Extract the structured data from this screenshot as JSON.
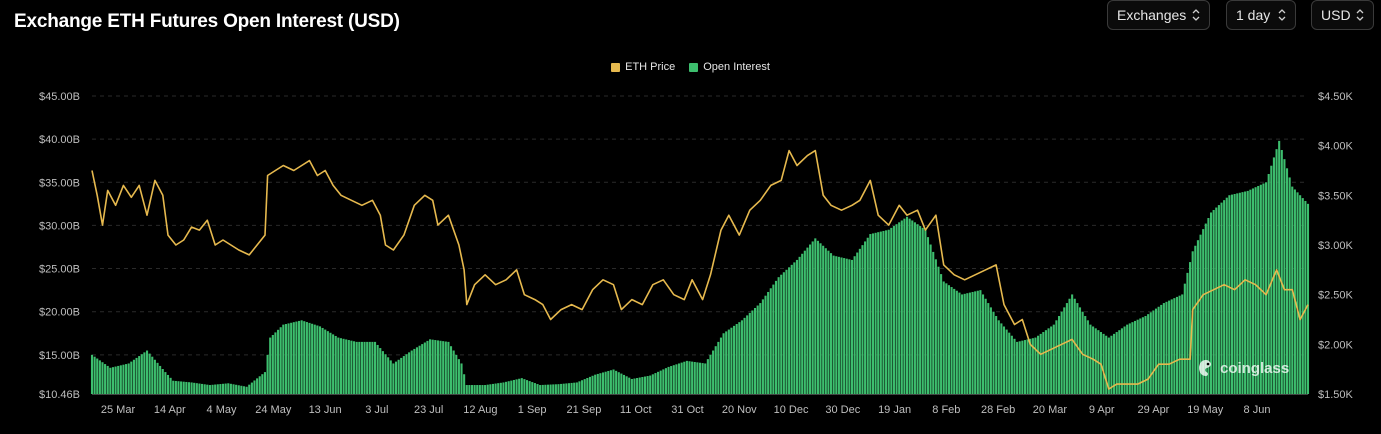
{
  "header": {
    "title": "Exchange ETH Futures Open Interest (USD)",
    "controls": [
      {
        "label": "Exchanges",
        "icon": "chevron-updown-icon"
      },
      {
        "label": "1 day",
        "icon": "chevron-updown-icon"
      },
      {
        "label": "USD",
        "icon": "chevron-updown-icon"
      }
    ]
  },
  "watermark": {
    "text": "coinglass",
    "icon": "coinglass-logo-icon"
  },
  "colors": {
    "price": "#E6B94E",
    "open_interest": "#3DBE6E",
    "grid": "#2a2a2a",
    "tick_text": "#bfbfbf",
    "background": "#000000"
  },
  "chart_data": {
    "type": "bar",
    "title": "Exchange ETH Futures Open Interest (USD)",
    "legend_position": "top-center",
    "grid": true,
    "x_ticks": [
      "25 Mar",
      "14 Apr",
      "4 May",
      "24 May",
      "13 Jun",
      "3 Jul",
      "23 Jul",
      "12 Aug",
      "1 Sep",
      "21 Sep",
      "11 Oct",
      "31 Oct",
      "20 Nov",
      "10 Dec",
      "30 Dec",
      "19 Jan",
      "8 Feb",
      "28 Feb",
      "20 Mar",
      "9 Apr",
      "29 Apr",
      "19 May",
      "8 Jun"
    ],
    "y_left": {
      "ticks": [
        "$10.46B",
        "$15.00B",
        "$20.00B",
        "$25.00B",
        "$30.00B",
        "$35.00B",
        "$40.00B",
        "$45.00B"
      ],
      "tick_values": [
        10.46,
        15,
        20,
        25,
        30,
        35,
        40,
        45
      ],
      "ylim": [
        10.46,
        45
      ]
    },
    "y_right": {
      "ticks": [
        "$1.50K",
        "$2.00K",
        "$2.50K",
        "$3.00K",
        "$3.50K",
        "$4.00K",
        "$4.50K"
      ],
      "tick_values": [
        1500,
        2000,
        2500,
        3000,
        3500,
        4000,
        4500
      ],
      "ylim": [
        1500,
        4500
      ]
    },
    "x_range": [
      "2024-03-15",
      "2025-06-22"
    ],
    "series": [
      {
        "name": "ETH Price",
        "type": "line",
        "axis": "right",
        "unit": "USD",
        "points": [
          [
            "2024-03-15",
            3750
          ],
          [
            "2024-03-17",
            3500
          ],
          [
            "2024-03-19",
            3200
          ],
          [
            "2024-03-21",
            3550
          ],
          [
            "2024-03-24",
            3400
          ],
          [
            "2024-03-27",
            3600
          ],
          [
            "2024-03-30",
            3480
          ],
          [
            "2024-04-02",
            3600
          ],
          [
            "2024-04-05",
            3300
          ],
          [
            "2024-04-08",
            3650
          ],
          [
            "2024-04-11",
            3500
          ],
          [
            "2024-04-13",
            3100
          ],
          [
            "2024-04-16",
            3000
          ],
          [
            "2024-04-19",
            3050
          ],
          [
            "2024-04-22",
            3180
          ],
          [
            "2024-04-25",
            3150
          ],
          [
            "2024-04-28",
            3250
          ],
          [
            "2024-05-01",
            3000
          ],
          [
            "2024-05-04",
            3050
          ],
          [
            "2024-05-07",
            3000
          ],
          [
            "2024-05-10",
            2950
          ],
          [
            "2024-05-14",
            2900
          ],
          [
            "2024-05-17",
            3000
          ],
          [
            "2024-05-20",
            3100
          ],
          [
            "2024-05-21",
            3700
          ],
          [
            "2024-05-24",
            3750
          ],
          [
            "2024-05-27",
            3800
          ],
          [
            "2024-05-31",
            3750
          ],
          [
            "2024-06-03",
            3800
          ],
          [
            "2024-06-06",
            3850
          ],
          [
            "2024-06-09",
            3700
          ],
          [
            "2024-06-12",
            3750
          ],
          [
            "2024-06-15",
            3600
          ],
          [
            "2024-06-18",
            3500
          ],
          [
            "2024-06-22",
            3450
          ],
          [
            "2024-06-26",
            3400
          ],
          [
            "2024-06-30",
            3450
          ],
          [
            "2024-07-03",
            3300
          ],
          [
            "2024-07-05",
            3000
          ],
          [
            "2024-07-08",
            2950
          ],
          [
            "2024-07-12",
            3100
          ],
          [
            "2024-07-16",
            3400
          ],
          [
            "2024-07-20",
            3500
          ],
          [
            "2024-07-23",
            3450
          ],
          [
            "2024-07-25",
            3200
          ],
          [
            "2024-07-29",
            3300
          ],
          [
            "2024-08-02",
            3000
          ],
          [
            "2024-08-04",
            2750
          ],
          [
            "2024-08-05",
            2400
          ],
          [
            "2024-08-08",
            2600
          ],
          [
            "2024-08-12",
            2700
          ],
          [
            "2024-08-16",
            2600
          ],
          [
            "2024-08-20",
            2650
          ],
          [
            "2024-08-24",
            2750
          ],
          [
            "2024-08-27",
            2500
          ],
          [
            "2024-08-31",
            2450
          ],
          [
            "2024-09-03",
            2400
          ],
          [
            "2024-09-06",
            2250
          ],
          [
            "2024-09-10",
            2350
          ],
          [
            "2024-09-14",
            2400
          ],
          [
            "2024-09-18",
            2350
          ],
          [
            "2024-09-22",
            2550
          ],
          [
            "2024-09-26",
            2650
          ],
          [
            "2024-09-30",
            2600
          ],
          [
            "2024-10-03",
            2350
          ],
          [
            "2024-10-07",
            2450
          ],
          [
            "2024-10-11",
            2400
          ],
          [
            "2024-10-15",
            2600
          ],
          [
            "2024-10-19",
            2650
          ],
          [
            "2024-10-23",
            2500
          ],
          [
            "2024-10-27",
            2450
          ],
          [
            "2024-10-30",
            2650
          ],
          [
            "2024-11-03",
            2450
          ],
          [
            "2024-11-06",
            2700
          ],
          [
            "2024-11-10",
            3150
          ],
          [
            "2024-11-13",
            3300
          ],
          [
            "2024-11-17",
            3100
          ],
          [
            "2024-11-21",
            3350
          ],
          [
            "2024-11-25",
            3450
          ],
          [
            "2024-11-29",
            3600
          ],
          [
            "2024-12-03",
            3650
          ],
          [
            "2024-12-06",
            3950
          ],
          [
            "2024-12-09",
            3800
          ],
          [
            "2024-12-13",
            3900
          ],
          [
            "2024-12-16",
            3950
          ],
          [
            "2024-12-19",
            3500
          ],
          [
            "2024-12-22",
            3400
          ],
          [
            "2024-12-26",
            3350
          ],
          [
            "2024-12-30",
            3400
          ],
          [
            "2025-01-02",
            3450
          ],
          [
            "2025-01-06",
            3650
          ],
          [
            "2025-01-09",
            3300
          ],
          [
            "2025-01-13",
            3200
          ],
          [
            "2025-01-17",
            3400
          ],
          [
            "2025-01-20",
            3300
          ],
          [
            "2025-01-24",
            3350
          ],
          [
            "2025-01-27",
            3150
          ],
          [
            "2025-01-31",
            3300
          ],
          [
            "2025-02-03",
            2800
          ],
          [
            "2025-02-07",
            2700
          ],
          [
            "2025-02-11",
            2650
          ],
          [
            "2025-02-15",
            2700
          ],
          [
            "2025-02-19",
            2750
          ],
          [
            "2025-02-23",
            2800
          ],
          [
            "2025-02-26",
            2400
          ],
          [
            "2025-03-02",
            2200
          ],
          [
            "2025-03-05",
            2250
          ],
          [
            "2025-03-08",
            2000
          ],
          [
            "2025-03-12",
            1900
          ],
          [
            "2025-03-16",
            1950
          ],
          [
            "2025-03-20",
            2000
          ],
          [
            "2025-03-24",
            2050
          ],
          [
            "2025-03-28",
            1900
          ],
          [
            "2025-04-01",
            1850
          ],
          [
            "2025-04-04",
            1800
          ],
          [
            "2025-04-07",
            1550
          ],
          [
            "2025-04-10",
            1600
          ],
          [
            "2025-04-14",
            1600
          ],
          [
            "2025-04-18",
            1600
          ],
          [
            "2025-04-22",
            1650
          ],
          [
            "2025-04-26",
            1800
          ],
          [
            "2025-04-30",
            1800
          ],
          [
            "2025-05-04",
            1850
          ],
          [
            "2025-05-08",
            1850
          ],
          [
            "2025-05-09",
            2350
          ],
          [
            "2025-05-13",
            2500
          ],
          [
            "2025-05-17",
            2550
          ],
          [
            "2025-05-21",
            2600
          ],
          [
            "2025-05-25",
            2550
          ],
          [
            "2025-05-29",
            2650
          ],
          [
            "2025-06-02",
            2600
          ],
          [
            "2025-06-06",
            2500
          ],
          [
            "2025-06-10",
            2750
          ],
          [
            "2025-06-13",
            2550
          ],
          [
            "2025-06-16",
            2550
          ],
          [
            "2025-06-19",
            2250
          ],
          [
            "2025-06-22",
            2400
          ]
        ]
      },
      {
        "name": "Open Interest",
        "type": "bar",
        "axis": "left",
        "unit": "USD billions",
        "points": [
          [
            "2024-03-15",
            15.0
          ],
          [
            "2024-03-22",
            13.5
          ],
          [
            "2024-03-29",
            14.0
          ],
          [
            "2024-04-05",
            15.5
          ],
          [
            "2024-04-12",
            13.0
          ],
          [
            "2024-04-15",
            12.0
          ],
          [
            "2024-04-22",
            11.8
          ],
          [
            "2024-04-29",
            11.5
          ],
          [
            "2024-05-06",
            11.7
          ],
          [
            "2024-05-13",
            11.3
          ],
          [
            "2024-05-20",
            13.0
          ],
          [
            "2024-05-22",
            17.0
          ],
          [
            "2024-05-27",
            18.5
          ],
          [
            "2024-06-03",
            19.0
          ],
          [
            "2024-06-10",
            18.3
          ],
          [
            "2024-06-17",
            17.0
          ],
          [
            "2024-06-24",
            16.5
          ],
          [
            "2024-07-01",
            16.5
          ],
          [
            "2024-07-08",
            14.0
          ],
          [
            "2024-07-15",
            15.5
          ],
          [
            "2024-07-22",
            16.8
          ],
          [
            "2024-07-29",
            16.5
          ],
          [
            "2024-08-03",
            14.0
          ],
          [
            "2024-08-05",
            11.5
          ],
          [
            "2024-08-12",
            11.5
          ],
          [
            "2024-08-19",
            11.8
          ],
          [
            "2024-08-26",
            12.3
          ],
          [
            "2024-09-02",
            11.5
          ],
          [
            "2024-09-09",
            11.6
          ],
          [
            "2024-09-16",
            11.8
          ],
          [
            "2024-09-23",
            12.7
          ],
          [
            "2024-09-30",
            13.3
          ],
          [
            "2024-10-07",
            12.2
          ],
          [
            "2024-10-14",
            12.6
          ],
          [
            "2024-10-21",
            13.6
          ],
          [
            "2024-10-28",
            14.3
          ],
          [
            "2024-11-04",
            14.0
          ],
          [
            "2024-11-11",
            17.5
          ],
          [
            "2024-11-18",
            19.0
          ],
          [
            "2024-11-25",
            21.0
          ],
          [
            "2024-12-02",
            24.0
          ],
          [
            "2024-12-09",
            26.0
          ],
          [
            "2024-12-16",
            28.5
          ],
          [
            "2024-12-23",
            26.5
          ],
          [
            "2024-12-30",
            26.0
          ],
          [
            "2025-01-06",
            29.0
          ],
          [
            "2025-01-13",
            29.5
          ],
          [
            "2025-01-20",
            31.0
          ],
          [
            "2025-01-27",
            29.5
          ],
          [
            "2025-02-03",
            23.5
          ],
          [
            "2025-02-10",
            22.0
          ],
          [
            "2025-02-17",
            22.5
          ],
          [
            "2025-02-24",
            19.0
          ],
          [
            "2025-03-03",
            16.5
          ],
          [
            "2025-03-10",
            17.0
          ],
          [
            "2025-03-17",
            18.5
          ],
          [
            "2025-03-24",
            22.0
          ],
          [
            "2025-03-31",
            18.5
          ],
          [
            "2025-04-07",
            17.0
          ],
          [
            "2025-04-14",
            18.5
          ],
          [
            "2025-04-21",
            19.5
          ],
          [
            "2025-04-28",
            21.0
          ],
          [
            "2025-05-05",
            22.0
          ],
          [
            "2025-05-09",
            27.0
          ],
          [
            "2025-05-16",
            31.5
          ],
          [
            "2025-05-23",
            33.5
          ],
          [
            "2025-05-30",
            34.0
          ],
          [
            "2025-06-06",
            35.0
          ],
          [
            "2025-06-11",
            39.8
          ],
          [
            "2025-06-16",
            34.5
          ],
          [
            "2025-06-22",
            32.5
          ]
        ]
      }
    ]
  }
}
